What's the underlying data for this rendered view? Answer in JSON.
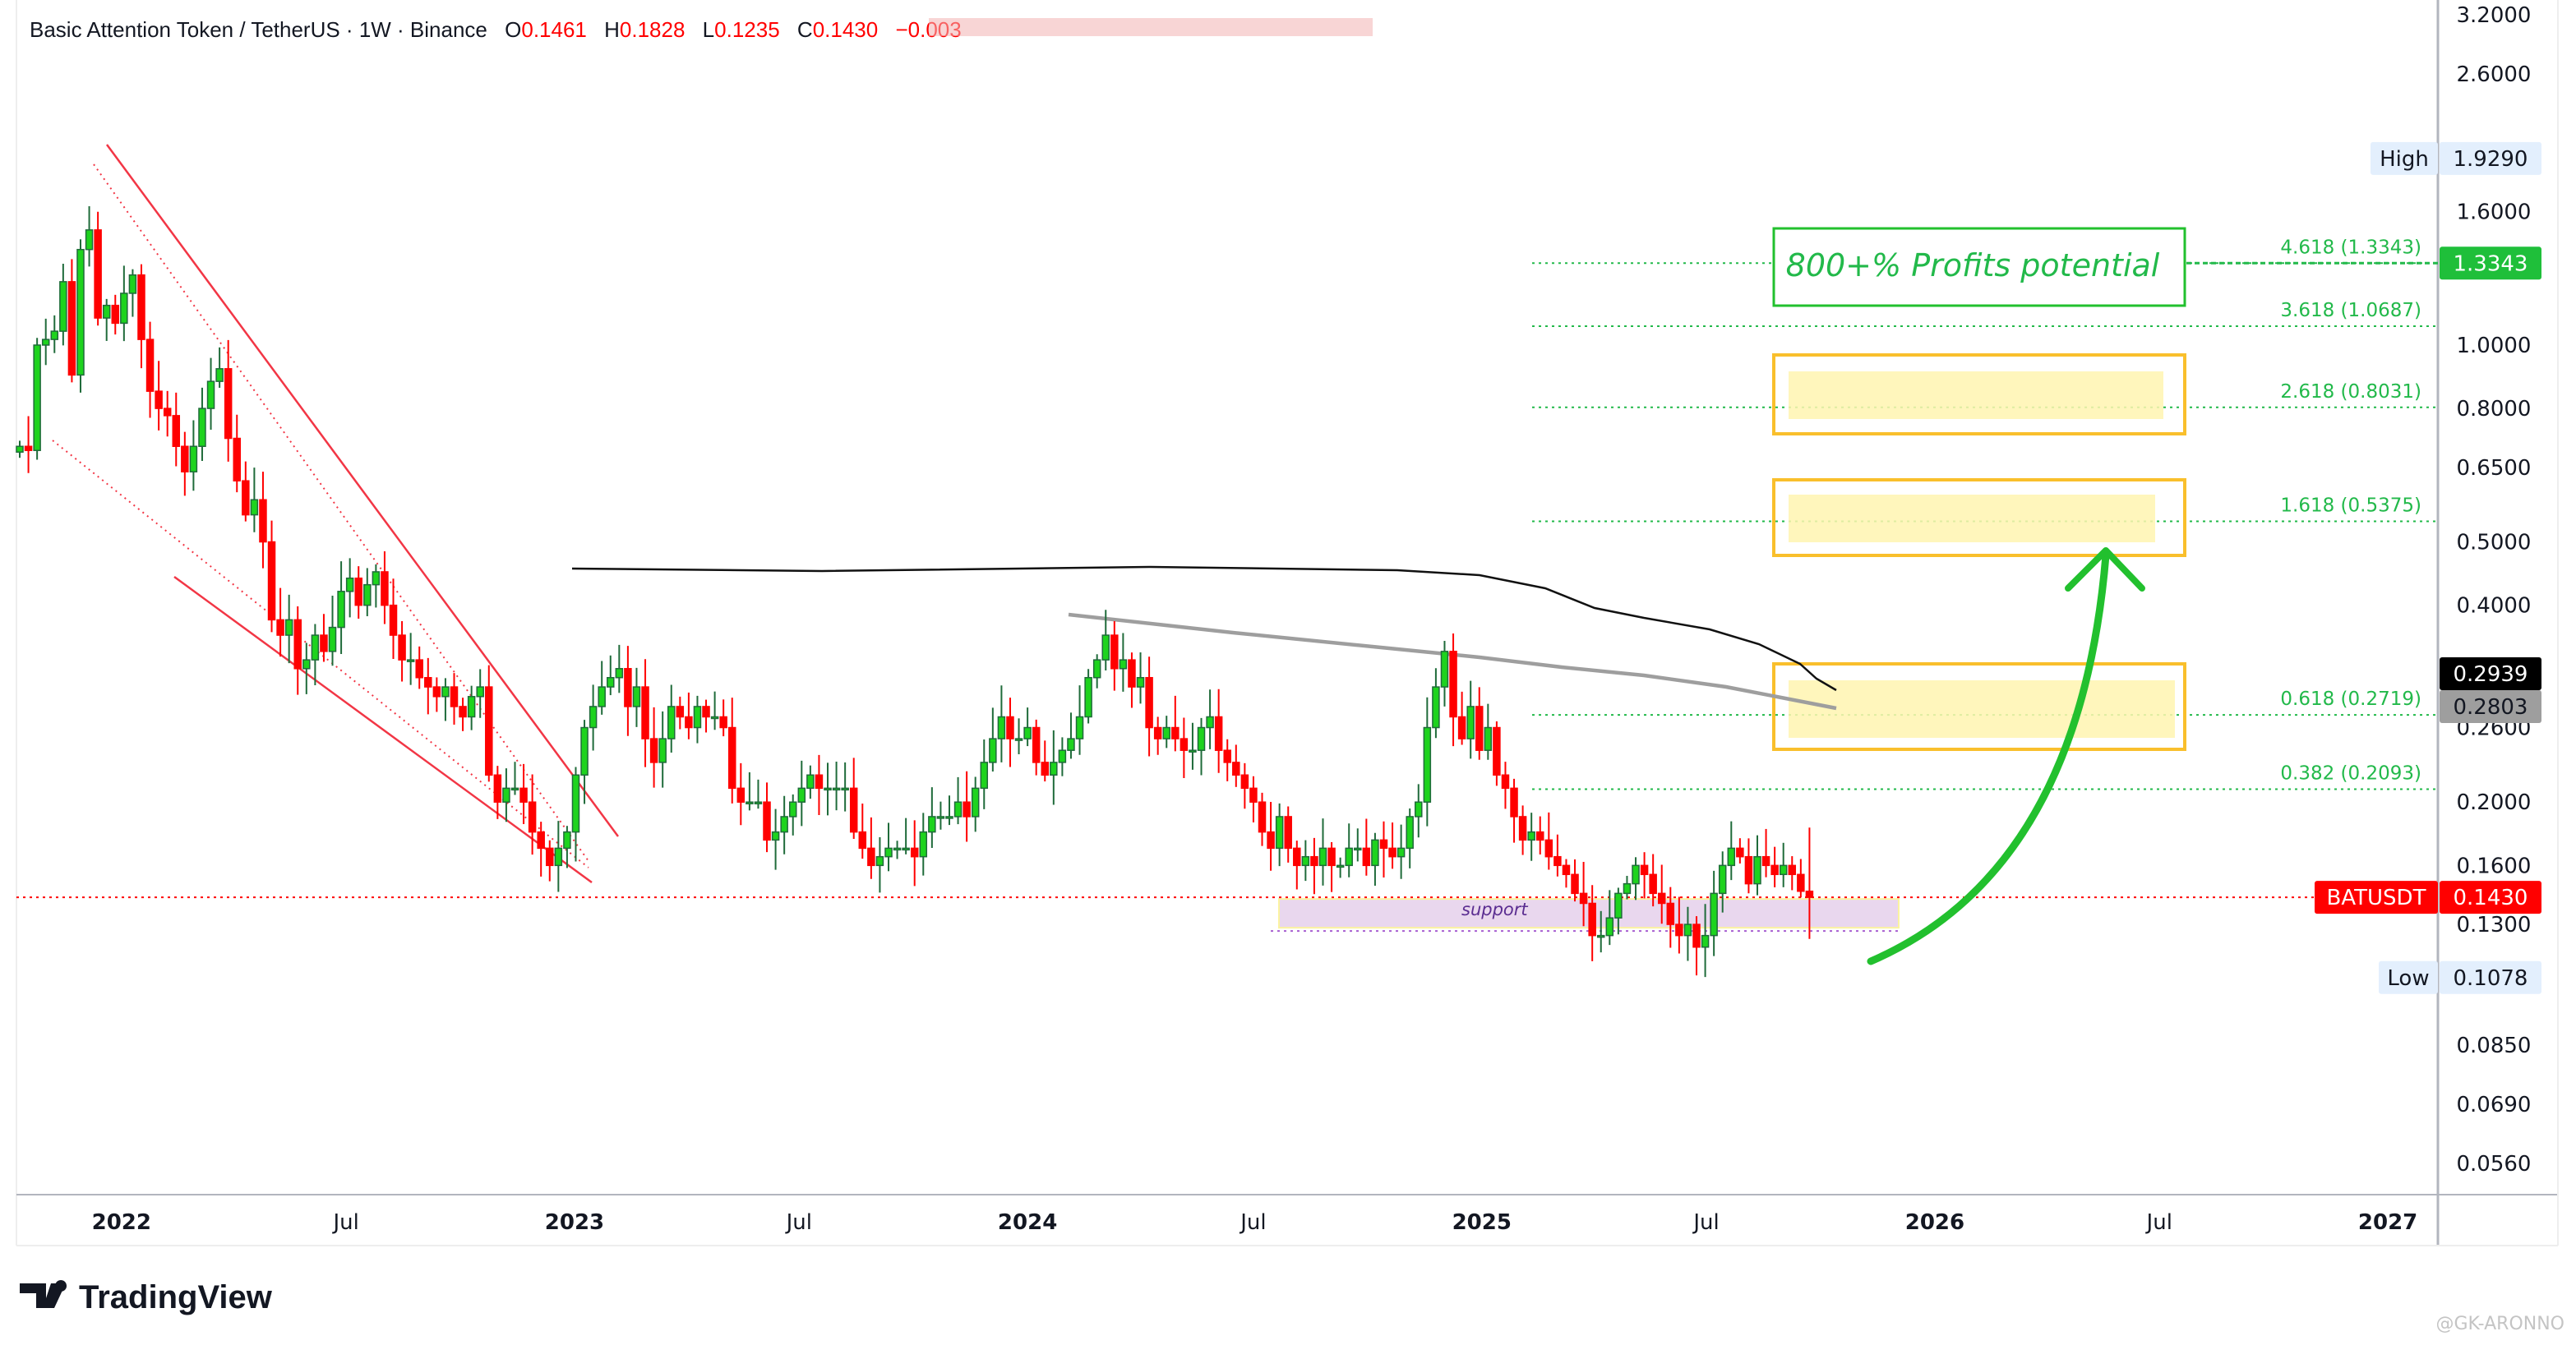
{
  "header": {
    "title": "Basic Attention Token / TetherUS · 1W · Binance",
    "o_label": "O",
    "o_value": "0.1461",
    "h_label": "H",
    "h_value": "0.1828",
    "l_label": "L",
    "l_value": "0.1235",
    "c_label": "C",
    "c_value": "0.1430",
    "change": "−0.003"
  },
  "chart_data": {
    "type": "candlestick",
    "title": "Basic Attention Token / TetherUS · 1W · Binance",
    "symbol": "BATUSDT",
    "interval": "1W",
    "scale": "log",
    "ylim": [
      0.056,
      3.2
    ],
    "x_start": "2021-10-11",
    "closes": [
      0.7,
      0.69,
      1.0,
      1.02,
      1.05,
      1.25,
      0.9,
      1.4,
      1.5,
      1.1,
      1.15,
      1.08,
      1.2,
      1.28,
      1.02,
      0.85,
      0.8,
      0.78,
      0.7,
      0.64,
      0.7,
      0.8,
      0.88,
      0.92,
      0.72,
      0.62,
      0.55,
      0.58,
      0.5,
      0.38,
      0.36,
      0.38,
      0.32,
      0.33,
      0.36,
      0.34,
      0.37,
      0.42,
      0.44,
      0.4,
      0.43,
      0.45,
      0.4,
      0.36,
      0.33,
      0.33,
      0.31,
      0.3,
      0.29,
      0.3,
      0.28,
      0.27,
      0.29,
      0.3,
      0.22,
      0.2,
      0.21,
      0.21,
      0.2,
      0.18,
      0.17,
      0.16,
      0.17,
      0.18,
      0.22,
      0.26,
      0.28,
      0.3,
      0.31,
      0.32,
      0.28,
      0.3,
      0.25,
      0.23,
      0.25,
      0.28,
      0.27,
      0.26,
      0.28,
      0.27,
      0.27,
      0.26,
      0.21,
      0.2,
      0.2,
      0.2,
      0.175,
      0.18,
      0.19,
      0.2,
      0.21,
      0.22,
      0.21,
      0.21,
      0.21,
      0.21,
      0.18,
      0.17,
      0.16,
      0.165,
      0.17,
      0.17,
      0.17,
      0.165,
      0.18,
      0.19,
      0.19,
      0.19,
      0.2,
      0.19,
      0.21,
      0.23,
      0.25,
      0.27,
      0.25,
      0.25,
      0.26,
      0.23,
      0.22,
      0.23,
      0.24,
      0.25,
      0.27,
      0.31,
      0.33,
      0.36,
      0.32,
      0.33,
      0.3,
      0.31,
      0.26,
      0.25,
      0.26,
      0.25,
      0.24,
      0.24,
      0.26,
      0.27,
      0.24,
      0.23,
      0.22,
      0.21,
      0.2,
      0.18,
      0.17,
      0.19,
      0.17,
      0.16,
      0.165,
      0.16,
      0.17,
      0.16,
      0.16,
      0.17,
      0.17,
      0.16,
      0.175,
      0.17,
      0.165,
      0.17,
      0.19,
      0.2,
      0.26,
      0.3,
      0.34,
      0.27,
      0.25,
      0.28,
      0.24,
      0.26,
      0.22,
      0.21,
      0.19,
      0.175,
      0.18,
      0.175,
      0.165,
      0.16,
      0.155,
      0.145,
      0.14,
      0.125,
      0.125,
      0.133,
      0.145,
      0.15,
      0.16,
      0.155,
      0.145,
      0.14,
      0.13,
      0.125,
      0.13,
      0.12,
      0.125,
      0.145,
      0.16,
      0.17,
      0.165,
      0.15,
      0.165,
      0.16,
      0.155,
      0.16,
      0.155,
      0.1461,
      0.143
    ],
    "last_candle": {
      "open": 0.1461,
      "high": 0.1828,
      "low": 0.1235,
      "close": 0.143
    },
    "y_ticks": [
      "3.2000",
      "2.6000",
      "1.6000",
      "1.0000",
      "0.8000",
      "0.6500",
      "0.5000",
      "0.4000",
      "0.2600",
      "0.2000",
      "0.1600",
      "0.1300",
      "0.0850",
      "0.0690",
      "0.0560"
    ],
    "x_ticks": [
      {
        "date": "2022-01-01",
        "label": "2022",
        "year": true
      },
      {
        "date": "2022-07-01",
        "label": "Jul",
        "year": false
      },
      {
        "date": "2023-01-01",
        "label": "2023",
        "year": true
      },
      {
        "date": "2023-07-01",
        "label": "Jul",
        "year": false
      },
      {
        "date": "2024-01-01",
        "label": "2024",
        "year": true
      },
      {
        "date": "2024-07-01",
        "label": "Jul",
        "year": false
      },
      {
        "date": "2025-01-01",
        "label": "2025",
        "year": true
      },
      {
        "date": "2025-07-01",
        "label": "Jul",
        "year": false
      },
      {
        "date": "2026-01-01",
        "label": "2026",
        "year": true
      },
      {
        "date": "2026-07-01",
        "label": "Jul",
        "year": false
      },
      {
        "date": "2027-01-01",
        "label": "2027",
        "year": true
      }
    ],
    "fib_levels": [
      {
        "label": "4.618 (1.3343)",
        "price": 1.3343
      },
      {
        "label": "3.618 (1.0687)",
        "price": 1.0687
      },
      {
        "label": "2.618 (0.8031)",
        "price": 0.8031
      },
      {
        "label": "1.618 (0.5375)",
        "price": 0.5375
      },
      {
        "label": "0.618 (0.2719)",
        "price": 0.2719
      },
      {
        "label": "0.382 (0.2093)",
        "price": 0.2093
      }
    ],
    "price_labels": {
      "high_label": "High",
      "high_value": "1.9290",
      "target_value": "1.3343",
      "ma1_value": "0.2939",
      "ma2_value": "0.2803",
      "symbol_label": "BATUSDT",
      "last_value": "0.1430",
      "low_label": "Low",
      "low_value": "0.1078"
    },
    "annotations": {
      "target_text": "800+% Profits potential",
      "support_text": "support",
      "support_range": [
        0.127,
        0.143
      ]
    },
    "colors": {
      "up": "#1ed31e",
      "down": "#ff0000",
      "fib": "#22b94a",
      "box": "#f9bf2c",
      "channel": "#f23645",
      "support": "#5b2d91"
    }
  },
  "footer": {
    "brand": "TradingView",
    "watermark": "@GK-ARONNO"
  }
}
